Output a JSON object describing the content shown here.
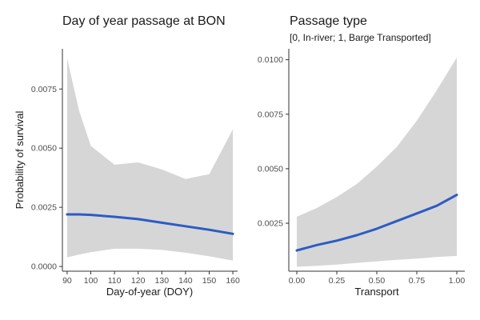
{
  "colors": {
    "ribbon": "#d6d6d6",
    "line": "#2b5cc4",
    "axis": "#333333"
  },
  "chart_data": [
    {
      "type": "line",
      "title": "Day of year passage at BON",
      "subtitle": "",
      "xlabel": "Day-of-year (DOY)",
      "ylabel": "Probability of survival",
      "xlim": [
        88,
        162
      ],
      "ylim": [
        -0.0002,
        0.0092
      ],
      "xticks": [
        90,
        100,
        110,
        120,
        130,
        140,
        150,
        160
      ],
      "xtick_labels": [
        "90",
        "100",
        "110",
        "120",
        "130",
        "140",
        "150",
        "160"
      ],
      "yticks": [
        0,
        0.0025,
        0.005,
        0.0075
      ],
      "ytick_labels": [
        "0.0000",
        "0.0025",
        "0.0050",
        "0.0075"
      ],
      "grid": false,
      "series": [
        {
          "x": [
            90,
            95,
            100,
            110,
            120,
            130,
            140,
            150,
            160
          ],
          "y": [
            0.0022,
            0.0022,
            0.00218,
            0.0021,
            0.002,
            0.00185,
            0.0017,
            0.00155,
            0.00138
          ],
          "lower": [
            0.00038,
            0.0005,
            0.0006,
            0.00075,
            0.00075,
            0.0007,
            0.00058,
            0.00043,
            0.00025
          ],
          "upper": [
            0.0088,
            0.0066,
            0.0051,
            0.0043,
            0.0044,
            0.0041,
            0.0037,
            0.0039,
            0.0058
          ]
        }
      ]
    },
    {
      "type": "line",
      "title": "Passage type",
      "subtitle": "[0, In-river; 1, Barge Transported]",
      "xlabel": "Transport",
      "ylabel": "",
      "xlim": [
        -0.05,
        1.05
      ],
      "ylim": [
        0.0003,
        0.0105
      ],
      "xticks": [
        0,
        0.25,
        0.5,
        0.75,
        1
      ],
      "xtick_labels": [
        "0.00",
        "0.25",
        "0.50",
        "0.75",
        "1.00"
      ],
      "yticks": [
        0.0025,
        0.005,
        0.0075,
        0.01
      ],
      "ytick_labels": [
        "0.0025",
        "0.0050",
        "0.0075",
        "0.0100"
      ],
      "grid": false,
      "series": [
        {
          "x": [
            0,
            0.125,
            0.25,
            0.375,
            0.5,
            0.625,
            0.75,
            0.875,
            1
          ],
          "y": [
            0.00125,
            0.0015,
            0.0017,
            0.00195,
            0.00225,
            0.0026,
            0.00295,
            0.0033,
            0.0038
          ],
          "lower": [
            0.0005,
            0.00055,
            0.0006,
            0.00068,
            0.00075,
            0.00082,
            0.00088,
            0.00095,
            0.001
          ],
          "upper": [
            0.0028,
            0.0032,
            0.0037,
            0.0043,
            0.0051,
            0.006,
            0.0072,
            0.0086,
            0.0101
          ]
        }
      ]
    }
  ]
}
